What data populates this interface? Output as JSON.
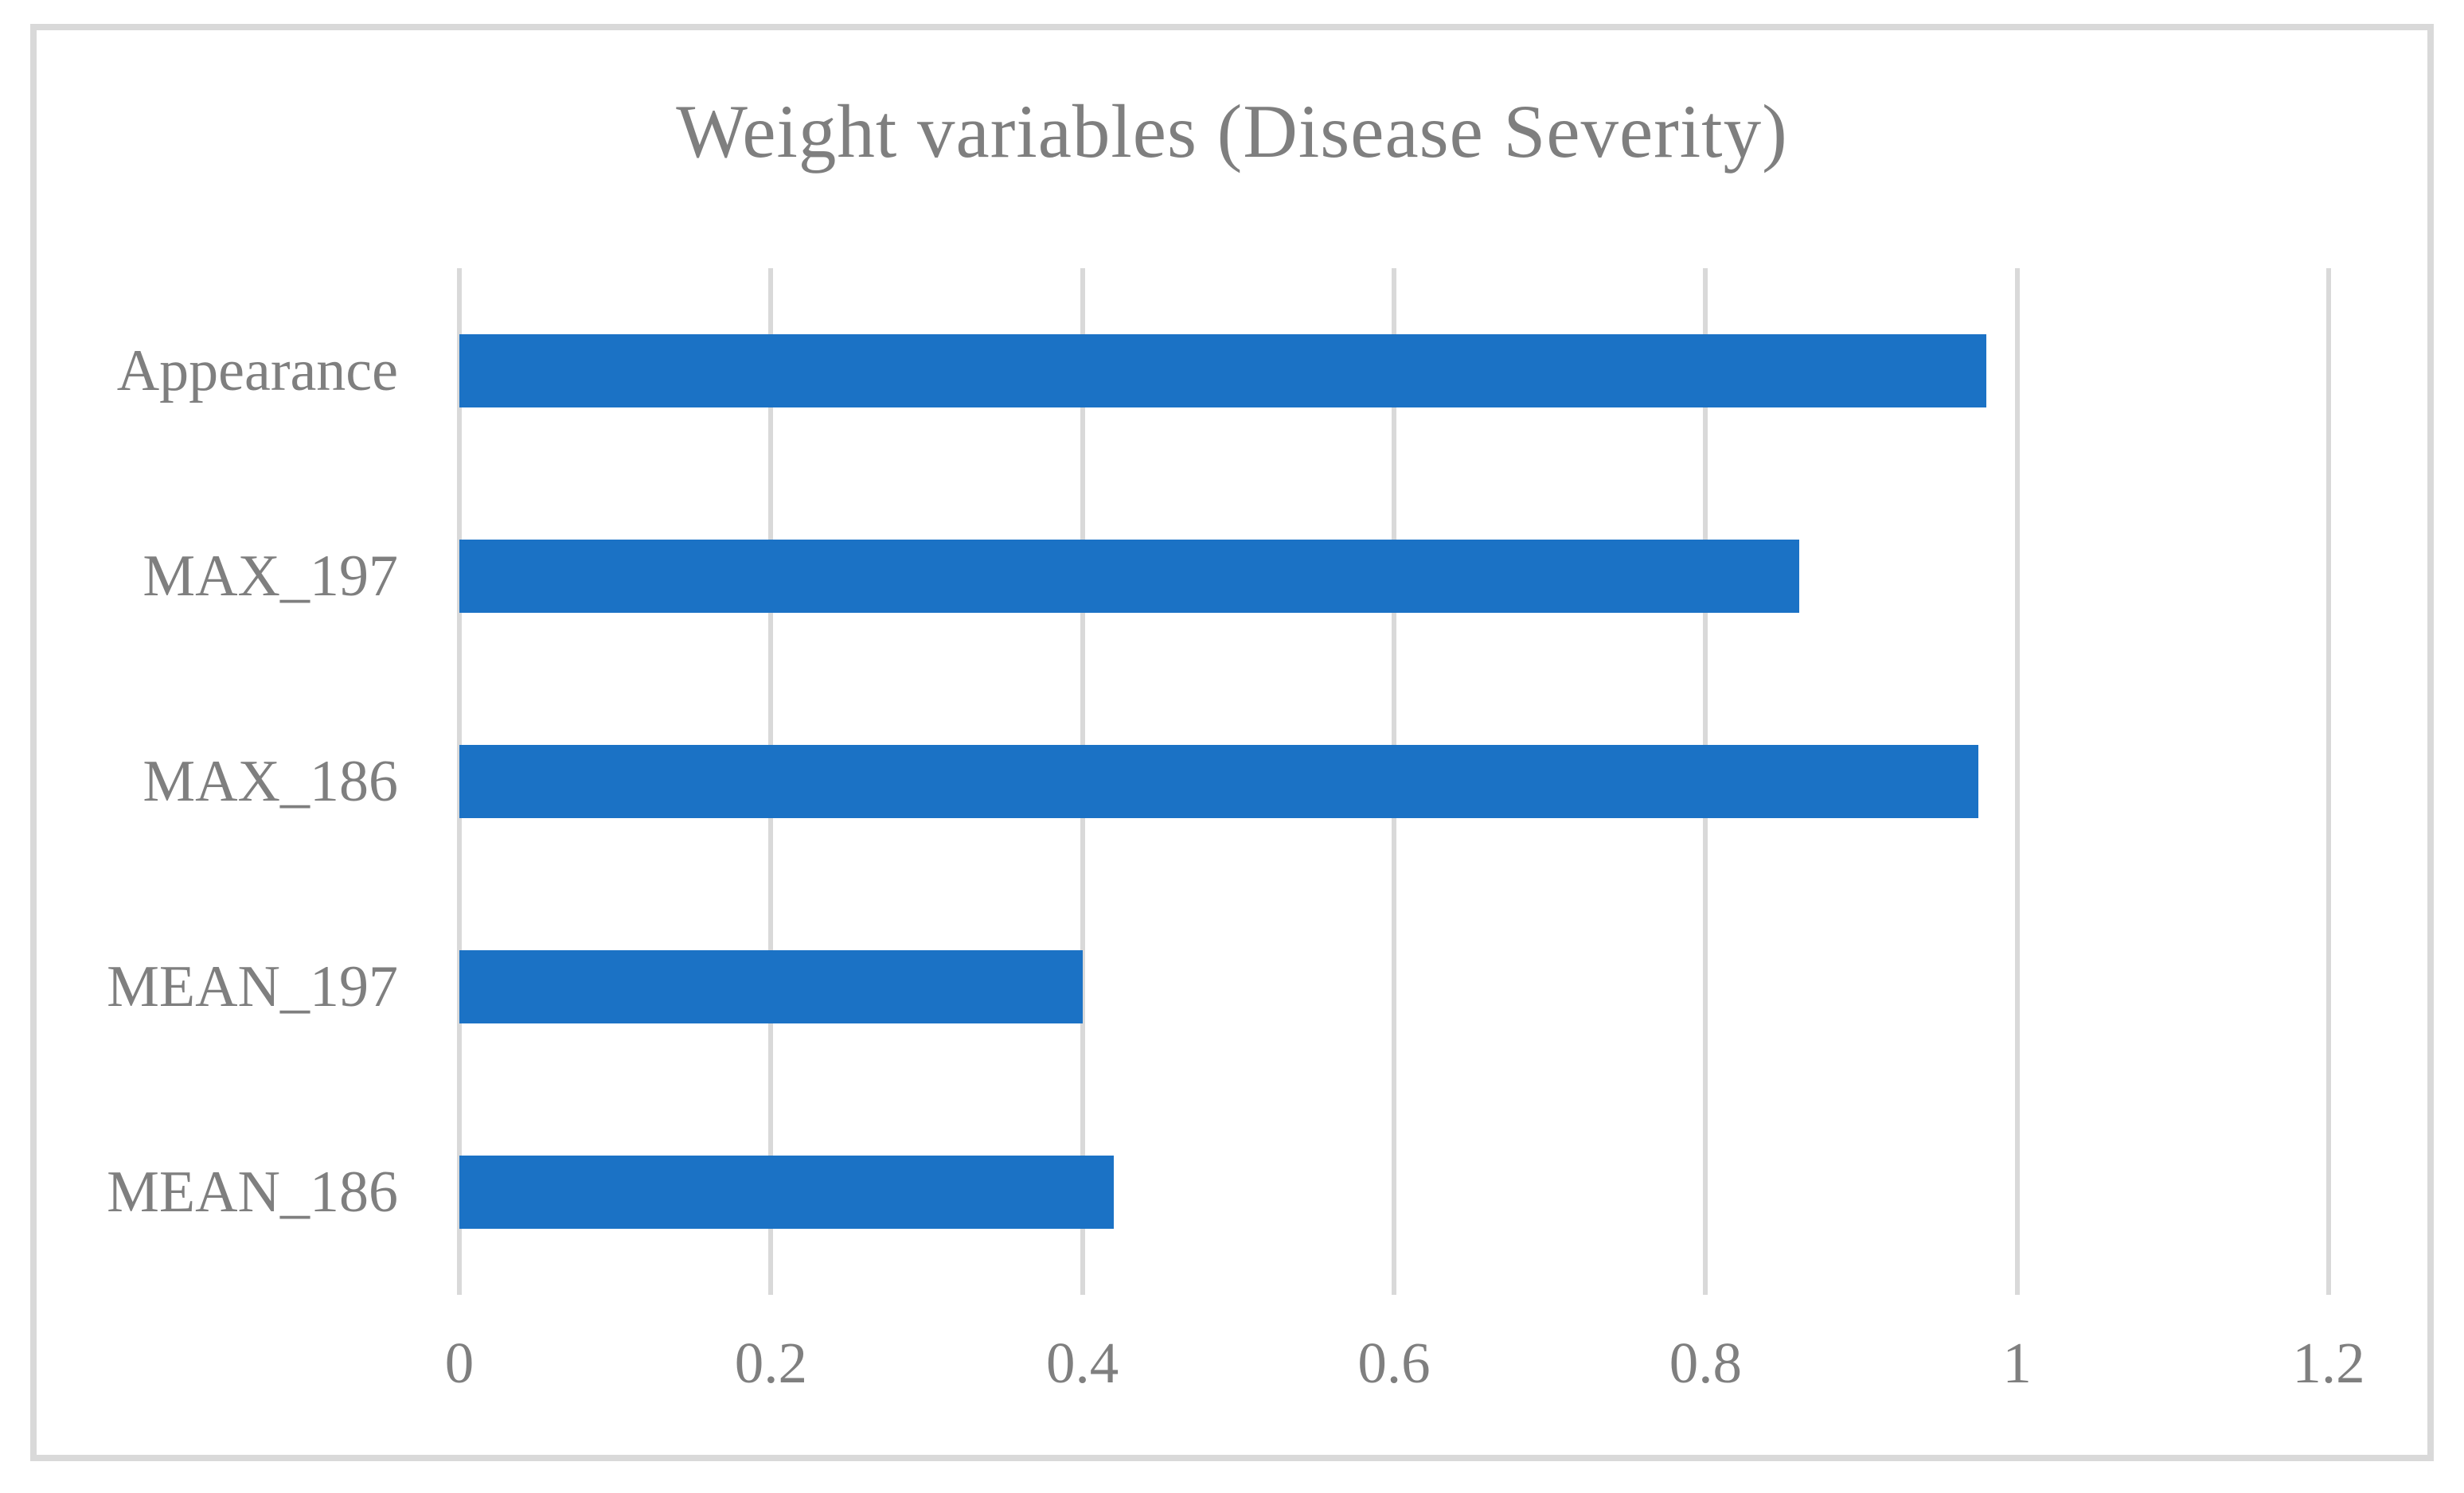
{
  "chart_data": {
    "type": "bar",
    "orientation": "horizontal",
    "title": "Weight variables (Disease Severity)",
    "categories": [
      "Appearance",
      "MAX_197",
      "MAX_186",
      "MEAN_197",
      "MEAN_186"
    ],
    "values": [
      0.98,
      0.86,
      0.975,
      0.4,
      0.42
    ],
    "xlabel": "",
    "ylabel": "",
    "xlim": [
      0,
      1.2
    ],
    "x_ticks": [
      "0",
      "0.2",
      "0.4",
      "0.6",
      "0.8",
      "1",
      "1.2"
    ],
    "x_tick_values": [
      0,
      0.2,
      0.4,
      0.6,
      0.8,
      1,
      1.2
    ],
    "grid": true,
    "legend": "none",
    "colors": {
      "bar": "#1b72c5",
      "gridline": "#d9d9d9",
      "frame_border": "#d9d9d9",
      "text": "#7f7f7f",
      "background": "#ffffff"
    }
  }
}
